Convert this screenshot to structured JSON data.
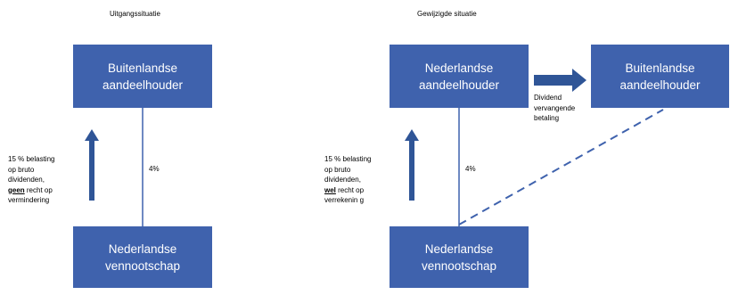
{
  "colors": {
    "box_fill": "#3f62ad",
    "accent": "#2f5597",
    "text": "#000000",
    "box_text": "#ffffff"
  },
  "left": {
    "title": "Uitgangssituatie",
    "top_box": {
      "line1": "Buitenlandse",
      "line2": "aandeelhouder"
    },
    "bottom_box": {
      "line1": "Nederlandse",
      "line2": "vennootschap"
    },
    "percentage": "4%",
    "tax_note": {
      "line1": "15 % belasting",
      "line2": "op bruto",
      "line3": "dividenden,",
      "line4_bold": "geen",
      "line4_rest": " recht op",
      "line5": "vermindering"
    }
  },
  "right": {
    "title": "Gewijzigde situatie",
    "top_left_box": {
      "line1": "Nederlandse",
      "line2": "aandeelhouder"
    },
    "top_right_box": {
      "line1": "Buitenlandse",
      "line2": "aandeelhouder"
    },
    "bottom_box": {
      "line1": "Nederlandse",
      "line2": "vennootschap"
    },
    "percentage": "4%",
    "payment_label": {
      "line1": "Dividend",
      "line2": "vervangende",
      "line3": "betaling"
    },
    "tax_note": {
      "line1": "15 % belasting",
      "line2": "op bruto",
      "line3": "dividenden,",
      "line4_bold": "wel",
      "line4_rest": " recht op",
      "line5": "verrekenin g"
    }
  }
}
